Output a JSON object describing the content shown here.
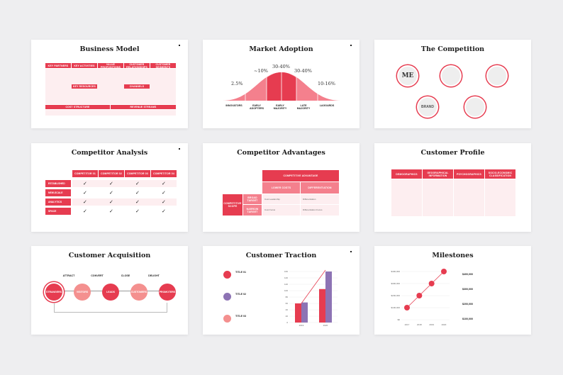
{
  "slides": {
    "business_model": {
      "title": "Business Model",
      "headers": [
        "KEY PARTNERS",
        "KEY ACTIVITIES",
        "VALUE PROPOSITIONS",
        "CUSTOMER RELATIONSHIPS",
        "CUSTOMER SEGMENTS"
      ],
      "sub_headers": [
        "KEY RESOURCES",
        "CHANNELS"
      ],
      "bottom_headers": [
        "COST STRUCTURE",
        "REVENUE STREAMS"
      ]
    },
    "market_adoption": {
      "title": "Market Adoption",
      "percents": [
        "2.5%",
        "~10%",
        "30-40%",
        "30-40%",
        "10-16%"
      ],
      "stages": [
        "INNOVATORS",
        "EARLY ADOPTERS",
        "EARLY MAJORITY",
        "LATE MAJORITY",
        "LAGGARDS"
      ]
    },
    "competition": {
      "title": "The Competition",
      "logos": [
        "ME",
        "",
        "",
        "BRAND",
        ""
      ]
    },
    "competitor_analysis": {
      "title": "Competitor Analysis",
      "columns": [
        "COMPETITOR 01",
        "COMPETITOR 02",
        "COMPETITOR 03",
        "COMPETITOR 04"
      ],
      "rows": [
        "ESTABLISHED",
        "NEW-SCALE",
        "ANALYTICS",
        "SPACE"
      ],
      "check": "✓"
    },
    "competitor_advantages": {
      "title": "Competitor Advantages",
      "top_header": "COMPETITIVE ADVANTAGE",
      "col_headers": [
        "LOWER COSTS",
        "DIFFERENTIATION"
      ],
      "side_header": "COMPETITIVE SCOPE",
      "row_headers": [
        "BROAD TARGET",
        "NARROW TARGET"
      ],
      "cells": [
        "Cost Leadership",
        "Differentiation",
        "Cost Focus",
        "Differentiation Focus"
      ]
    },
    "customer_profile": {
      "title": "Customer Profile",
      "headers": [
        "DEMOGRAPHICS",
        "GEOGRAPHICAL INFORMATION",
        "PSYCHOGRAPHICS",
        "SOCIO-ECONOMIC CLASSIFICATION"
      ]
    },
    "customer_acquisition": {
      "title": "Customer Acquisition",
      "phases": [
        "ATTRACT",
        "CONVERT",
        "CLOSE",
        "DELIGHT"
      ],
      "stages": [
        "STRANGERS",
        "VISITORS",
        "LEADS",
        "CUSTOMERS",
        "PROMOTERS"
      ]
    },
    "customer_traction": {
      "title": "Customer Traction",
      "items": [
        "TITLE 01",
        "TITLE 02",
        "TITLE 03"
      ],
      "chart_data": {
        "type": "bar",
        "categories": [
          "2019",
          "2020"
        ],
        "series": [
          {
            "name": "",
            "values": [
              60,
              105
            ],
            "color": "#e63c50"
          },
          {
            "name": "",
            "values": [
              63,
              160
            ],
            "color": "#8d73b4"
          }
        ],
        "ylim": [
          0,
          160
        ],
        "yticks": [
          "0",
          "20",
          "40",
          "60",
          "80",
          "100",
          "120",
          "140",
          "160"
        ]
      }
    },
    "milestones": {
      "title": "Milestones",
      "values": [
        "$400,000",
        "$300,000",
        "$200,000",
        "$100,000"
      ],
      "chart_data": {
        "type": "line",
        "x": [
          "2017",
          "2018",
          "2019",
          "2020"
        ],
        "values": [
          100000,
          200000,
          300000,
          400000
        ],
        "yticks": [
          "$0",
          "$100,000",
          "$200,000",
          "$300,000",
          "$400,000"
        ],
        "ylim": [
          0,
          400000
        ]
      }
    }
  },
  "colors": {
    "accent": "#e63c50",
    "accent_light": "#fdeef0",
    "purple": "#8d73b4",
    "salmon": "#f28b82"
  }
}
